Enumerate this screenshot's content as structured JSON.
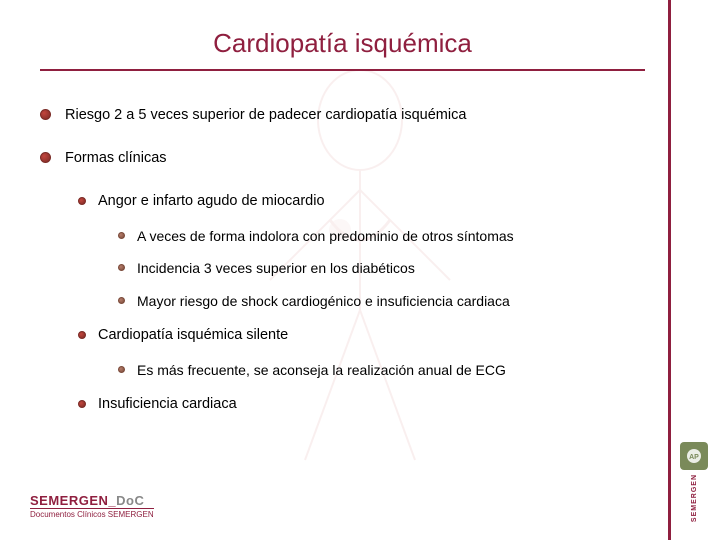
{
  "colors": {
    "accent": "#8f1f3f",
    "bullet1_fill": "#c2453d",
    "bullet1_border": "#7a2a25",
    "bullet2_fill": "#c2453d",
    "bullet2_border": "#7a2a25",
    "bullet3_fill": "#b57c6a",
    "bullet3_border": "#7a4a3a",
    "hr": "#8f1f3f",
    "sideband_border": "#8f1f3f"
  },
  "title": "Cardiopatía isquémica",
  "items": [
    {
      "level": 1,
      "text": "Riesgo 2 a 5 veces superior de padecer cardiopatía isquémica"
    },
    {
      "level": 1,
      "text": "Formas clínicas"
    },
    {
      "level": 2,
      "text": "Angor e infarto agudo de miocardio"
    },
    {
      "level": 3,
      "text": "A veces de forma indolora con predominio de otros síntomas"
    },
    {
      "level": 3,
      "text": "Incidencia 3 veces superior en los diabéticos"
    },
    {
      "level": 3,
      "text": "Mayor riesgo de shock cardiogénico e insuficiencia cardiaca"
    },
    {
      "level": 2,
      "text": "Cardiopatía isquémica silente"
    },
    {
      "level": 3,
      "text": "Es más frecuente, se aconseja la realización anual de ECG"
    },
    {
      "level": 2,
      "text": "Insuficiencia cardiaca"
    }
  ],
  "footer": {
    "brand": "SEMERGEN",
    "suffix": "DoC",
    "sub": "Documentos Clínicos SEMERGEN"
  },
  "side": {
    "ap": "AP",
    "vert": "SEMERGEN"
  }
}
